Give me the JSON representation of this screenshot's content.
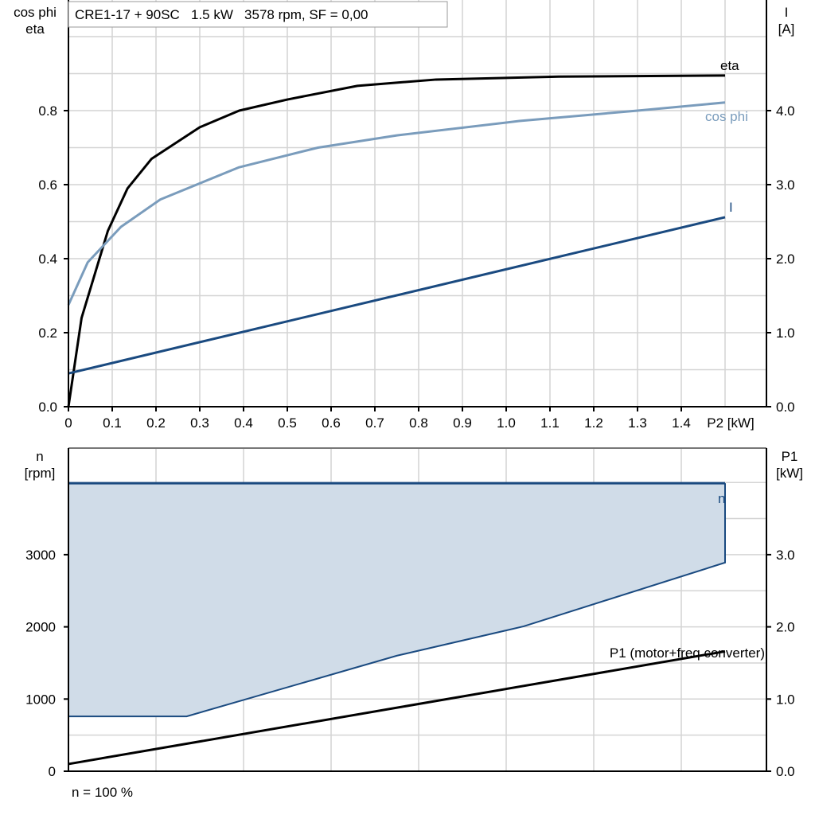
{
  "chart_data": [
    {
      "type": "line",
      "title": "CRE1-17 + 90SC   1.5 kW   3578 rpm, SF = 0,00",
      "xlabel": "P2 [kW]",
      "ylabel_left": [
        "cos phi",
        "eta"
      ],
      "ylabel_right": [
        "I",
        "[A]"
      ],
      "xlim": [
        0,
        1.6
      ],
      "ylim_left": [
        0,
        1.0
      ],
      "ylim_right": [
        0,
        5.0
      ],
      "x_ticks": [
        "0",
        "0.1",
        "0.2",
        "0.3",
        "0.4",
        "0.5",
        "0.6",
        "0.7",
        "0.8",
        "0.9",
        "1.0",
        "1.1",
        "1.2",
        "1.3",
        "1.4"
      ],
      "y_ticks_left": [
        "0.0",
        "0.2",
        "0.4",
        "0.6",
        "0.8"
      ],
      "y_ticks_right": [
        "0.0",
        "1.0",
        "2.0",
        "3.0",
        "4.0"
      ],
      "grid": true,
      "series": [
        {
          "name": "eta",
          "axis": "left",
          "color": "#000000",
          "x": [
            0,
            0.03,
            0.09,
            0.135,
            0.19,
            0.3,
            0.39,
            0.5,
            0.66,
            0.84,
            1.12,
            1.5
          ],
          "y": [
            0,
            0.24,
            0.475,
            0.59,
            0.67,
            0.755,
            0.8,
            0.83,
            0.867,
            0.884,
            0.892,
            0.895
          ]
        },
        {
          "name": "cos phi",
          "axis": "left",
          "color": "#7a9cbc",
          "x": [
            0,
            0.044,
            0.12,
            0.21,
            0.39,
            0.57,
            0.75,
            1.03,
            1.3,
            1.5
          ],
          "y": [
            0.275,
            0.39,
            0.486,
            0.56,
            0.647,
            0.7,
            0.733,
            0.772,
            0.8,
            0.822
          ]
        },
        {
          "name": "I",
          "axis": "right",
          "color": "#1a4a80",
          "x": [
            0,
            1.5
          ],
          "y": [
            0.45,
            2.56
          ]
        }
      ]
    },
    {
      "type": "area",
      "xlabel": "",
      "ylabel_left": [
        "n",
        "[rpm]"
      ],
      "ylabel_right": [
        "P1",
        "[kW]"
      ],
      "xlim": [
        0,
        1.6
      ],
      "ylim_left": [
        0,
        4500
      ],
      "ylim_right": [
        0,
        4.5
      ],
      "y_ticks_left": [
        "0",
        "1000",
        "2000",
        "3000"
      ],
      "y_ticks_right": [
        "0.0",
        "1.0",
        "2.0",
        "3.0"
      ],
      "grid": true,
      "footnote": "n = 100 %",
      "series": [
        {
          "name": "n",
          "axis": "left",
          "color": "#1a4a80",
          "fill": "#d0dce8",
          "upper": {
            "x": [
              0,
              1.5
            ],
            "y": [
              3990,
              3990
            ]
          },
          "lower": {
            "x": [
              0,
              0.27,
              0.75,
              1.04,
              1.5
            ],
            "y": [
              760,
              760,
              1600,
              2007,
              2890
            ]
          }
        },
        {
          "name": "P1 (motor+freq converter)",
          "axis": "right",
          "color": "#000000",
          "x": [
            0,
            1.5
          ],
          "y": [
            0.1,
            1.66
          ]
        }
      ]
    }
  ]
}
